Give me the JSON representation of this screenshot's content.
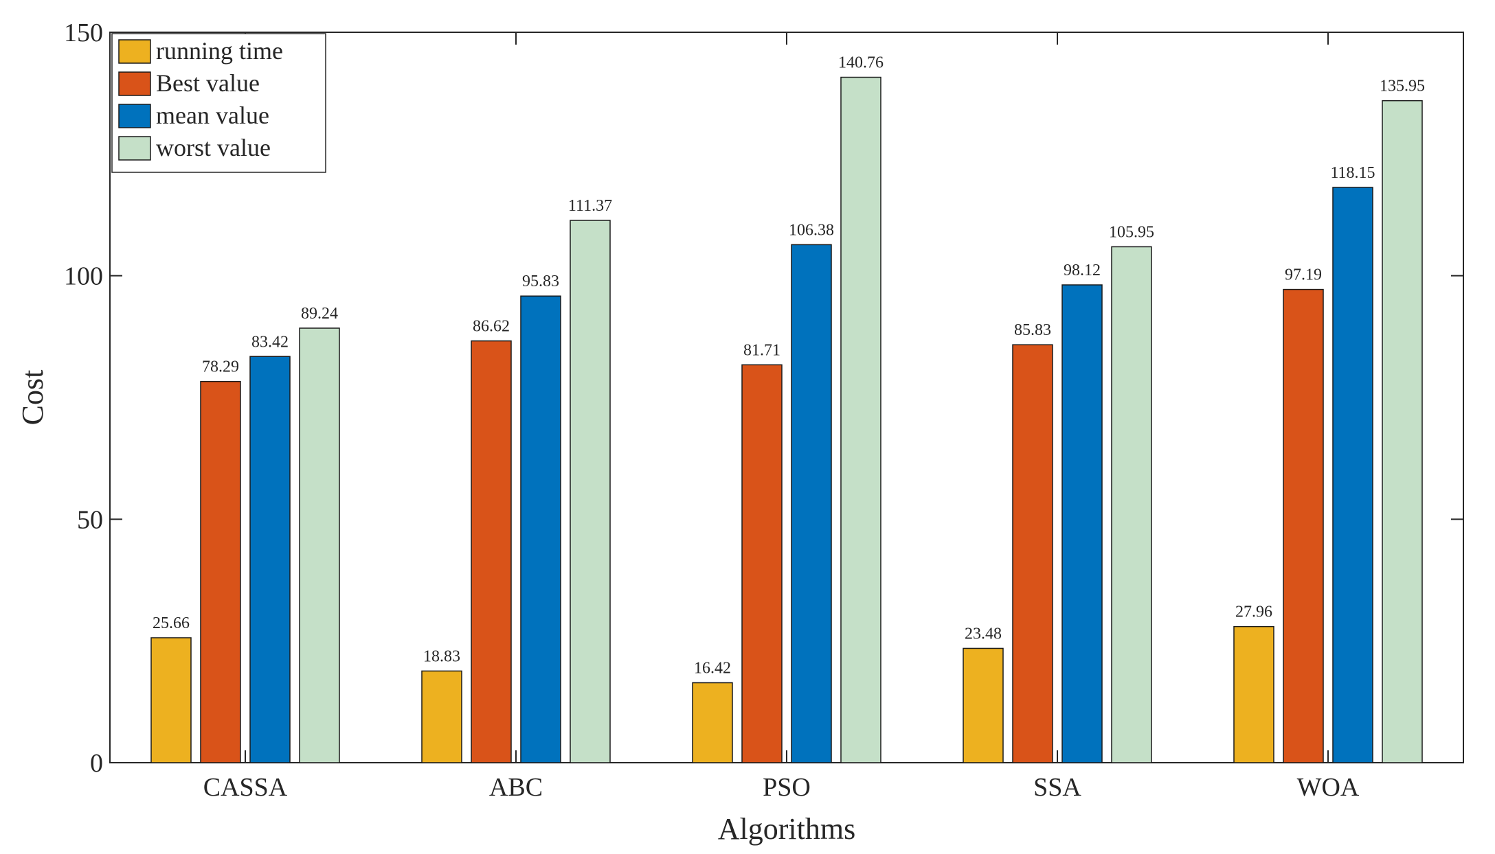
{
  "chart_data": {
    "type": "bar",
    "title": "",
    "xlabel": "Algorithms",
    "ylabel": "Cost",
    "ylim": [
      0,
      150
    ],
    "yticks": [
      "0",
      "50",
      "100",
      "150"
    ],
    "grid": false,
    "legend_position": "top-left",
    "categories": [
      "CASSA",
      "ABC",
      "PSO",
      "SSA",
      "WOA"
    ],
    "series": [
      {
        "name": "running time",
        "color": "#EDB120",
        "values": [
          25.66,
          18.83,
          16.42,
          23.48,
          27.96
        ],
        "labels": [
          "25.66",
          "18.83",
          "16.42",
          "23.48",
          "27.96"
        ]
      },
      {
        "name": "Best value",
        "color": "#D95319",
        "values": [
          78.29,
          86.62,
          81.71,
          85.83,
          97.19
        ],
        "labels": [
          "78.29",
          "86.62",
          "81.71",
          "85.83",
          "97.19"
        ]
      },
      {
        "name": "mean value",
        "color": "#0072BD",
        "values": [
          83.42,
          95.83,
          106.38,
          98.12,
          118.15
        ],
        "labels": [
          "83.42",
          "95.83",
          "106.38",
          "98.12",
          "118.15"
        ]
      },
      {
        "name": "worst value",
        "color": "#C5E0C8",
        "values": [
          89.24,
          111.37,
          140.76,
          105.95,
          135.95
        ],
        "labels": [
          "89.24",
          "111.37",
          "140.76",
          "105.95",
          "135.95"
        ]
      }
    ]
  }
}
